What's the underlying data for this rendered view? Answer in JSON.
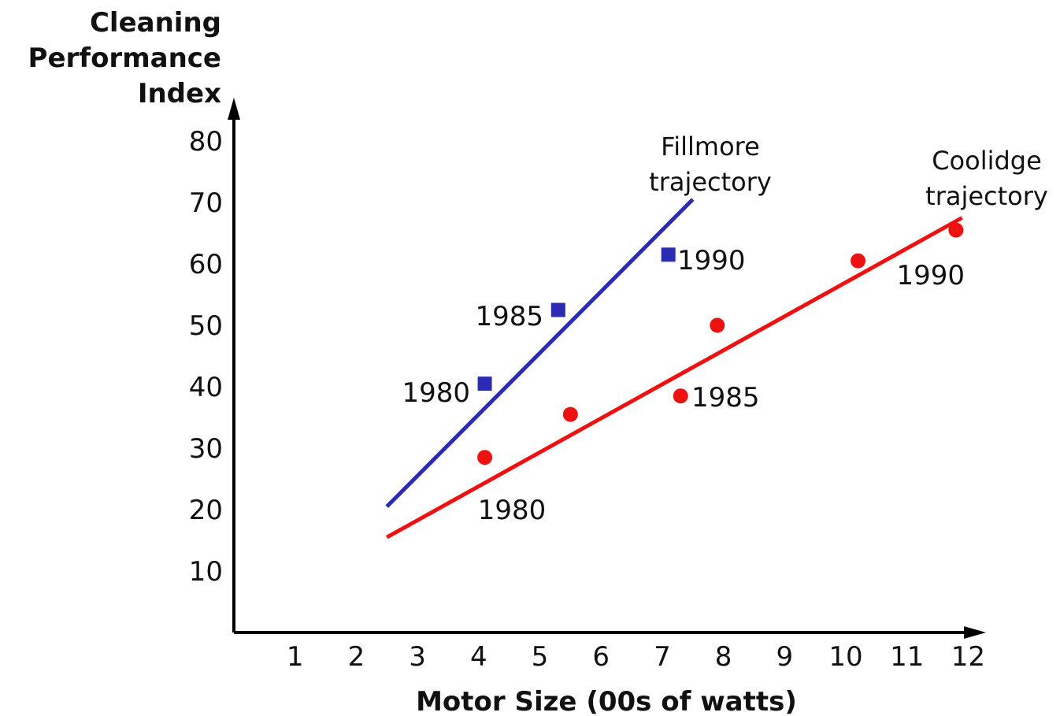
{
  "chart_data": {
    "type": "scatter",
    "xlabel": "Motor Size (00s of watts)",
    "ylabel_lines": [
      "Cleaning",
      "Performance",
      "Index"
    ],
    "xlim": [
      0,
      12
    ],
    "ylim": [
      0,
      80
    ],
    "x_ticks": [
      "1",
      "2",
      "3",
      "4",
      "5",
      "6",
      "7",
      "8",
      "9",
      "10",
      "11",
      "12"
    ],
    "y_ticks": [
      "10",
      "20",
      "30",
      "40",
      "50",
      "60",
      "70",
      "80"
    ],
    "grid": false,
    "series": [
      {
        "name": "Fillmore",
        "color": "#2b2bb5",
        "marker": "square",
        "points": [
          {
            "x": 4.1,
            "y": 40.5,
            "label": "1980"
          },
          {
            "x": 5.3,
            "y": 52.5,
            "label": "1985"
          },
          {
            "x": 7.1,
            "y": 61.5,
            "label": "1990"
          }
        ],
        "trajectory": {
          "label_lines": [
            "Fillmore",
            "trajectory"
          ],
          "from": {
            "x": 2.5,
            "y": 20.5
          },
          "to": {
            "x": 7.5,
            "y": 70.5
          }
        }
      },
      {
        "name": "Coolidge",
        "color": "#ee1111",
        "marker": "circle",
        "points": [
          {
            "x": 4.1,
            "y": 28.5,
            "label": "1980"
          },
          {
            "x": 5.5,
            "y": 35.5,
            "label": ""
          },
          {
            "x": 7.3,
            "y": 38.5,
            "label": "1985"
          },
          {
            "x": 7.9,
            "y": 50.0,
            "label": ""
          },
          {
            "x": 10.2,
            "y": 60.5,
            "label": ""
          },
          {
            "x": 11.8,
            "y": 65.5,
            "label": "1990"
          }
        ],
        "trajectory": {
          "label_lines": [
            "Coolidge",
            "trajectory"
          ],
          "from": {
            "x": 2.5,
            "y": 15.5
          },
          "to": {
            "x": 11.9,
            "y": 67.5
          }
        }
      }
    ]
  }
}
